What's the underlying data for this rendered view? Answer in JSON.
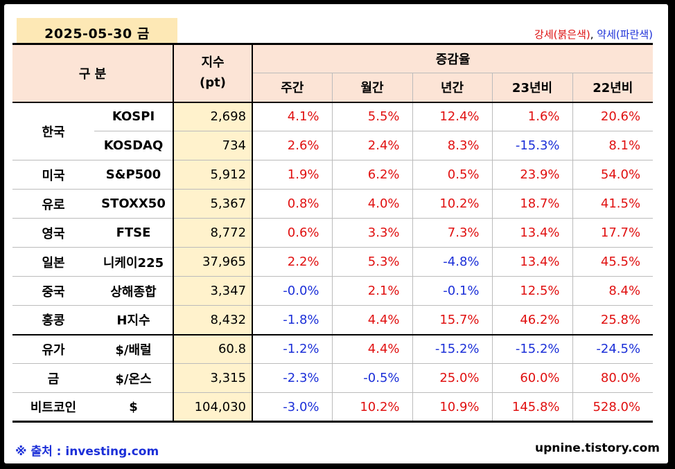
{
  "date_label": "2025-05-30 금",
  "legend": {
    "strong": "강세(붉은색)",
    "sep": ", ",
    "weak": "약세(파란색)"
  },
  "header": {
    "group": "구 분",
    "index_line1": "지수",
    "index_line2": "(pt)",
    "change": "증감율",
    "cols": [
      "주간",
      "월간",
      "년간",
      "23년비",
      "22년비"
    ]
  },
  "rows": [
    {
      "group": "한국",
      "name": "KOSPI",
      "index": "2,698",
      "vals": [
        "4.1%",
        "5.5%",
        "12.4%",
        "1.6%",
        "20.6%"
      ]
    },
    {
      "group": "",
      "name": "KOSDAQ",
      "index": "734",
      "vals": [
        "2.6%",
        "2.4%",
        "8.3%",
        "-15.3%",
        "8.1%"
      ]
    },
    {
      "group": "미국",
      "name": "S&P500",
      "index": "5,912",
      "vals": [
        "1.9%",
        "6.2%",
        "0.5%",
        "23.9%",
        "54.0%"
      ]
    },
    {
      "group": "유로",
      "name": "STOXX50",
      "index": "5,367",
      "vals": [
        "0.8%",
        "4.0%",
        "10.2%",
        "18.7%",
        "41.5%"
      ]
    },
    {
      "group": "영국",
      "name": "FTSE",
      "index": "8,772",
      "vals": [
        "0.6%",
        "3.3%",
        "7.3%",
        "13.4%",
        "17.7%"
      ]
    },
    {
      "group": "일본",
      "name": "니케이225",
      "index": "37,965",
      "vals": [
        "2.2%",
        "5.3%",
        "-4.8%",
        "13.4%",
        "45.5%"
      ]
    },
    {
      "group": "중국",
      "name": "상해종합",
      "index": "3,347",
      "vals": [
        "-0.0%",
        "2.1%",
        "-0.1%",
        "12.5%",
        "8.4%"
      ]
    },
    {
      "group": "홍콩",
      "name": "H지수",
      "index": "8,432",
      "vals": [
        "-1.8%",
        "4.4%",
        "15.7%",
        "46.2%",
        "25.8%"
      ]
    },
    {
      "group": "유가",
      "name": "$/배럴",
      "index": "60.8",
      "vals": [
        "-1.2%",
        "4.4%",
        "-15.2%",
        "-15.2%",
        "-24.5%"
      ]
    },
    {
      "group": "금",
      "name": "$/온스",
      "index": "3,315",
      "vals": [
        "-2.3%",
        "-0.5%",
        "25.0%",
        "60.0%",
        "80.0%"
      ]
    },
    {
      "group": "비트코인",
      "name": "$",
      "index": "104,030",
      "vals": [
        "-3.0%",
        "10.2%",
        "10.9%",
        "145.8%",
        "528.0%"
      ]
    }
  ],
  "colors": {
    "up": "#e01010",
    "down": "#1b2fd8",
    "index_bg": "#fff2cc",
    "header_bg": "#fce4d6",
    "date_bg": "#fde8b5"
  },
  "source": "※ 출처 : investing.com",
  "site": "upnine.tistory.com"
}
